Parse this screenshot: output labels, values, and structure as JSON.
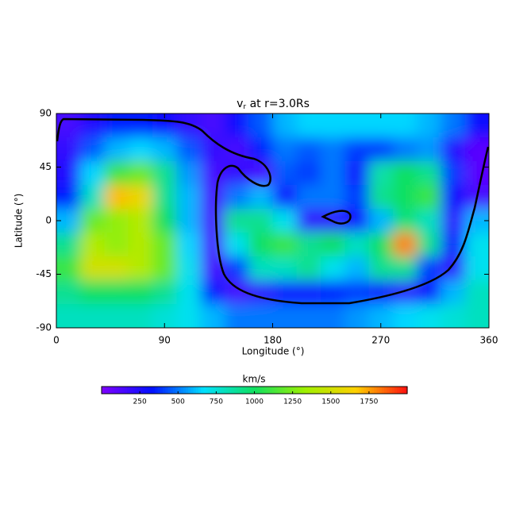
{
  "chart_data": {
    "type": "heatmap",
    "title": {
      "main": "v",
      "sub": "r",
      "rest": " at r=3.0Rs"
    },
    "x_label": "Longitude (°)",
    "y_label": "Latitude (°)",
    "xlim": [
      0,
      360
    ],
    "ylim": [
      -90,
      90
    ],
    "xticks": [
      0,
      90,
      180,
      270,
      360
    ],
    "yticks": [
      -90,
      -45,
      0,
      45,
      90
    ],
    "x": [
      10,
      30,
      50,
      70,
      90,
      110,
      130,
      150,
      170,
      190,
      210,
      230,
      250,
      270,
      290,
      310,
      330,
      350
    ],
    "y": [
      80,
      60,
      40,
      20,
      0,
      -20,
      -40,
      -60,
      -80
    ],
    "values": [
      [
        150,
        250,
        350,
        350,
        300,
        200,
        150,
        300,
        450,
        600,
        650,
        650,
        650,
        650,
        650,
        600,
        500,
        300
      ],
      [
        200,
        450,
        600,
        650,
        600,
        450,
        200,
        150,
        350,
        500,
        450,
        500,
        400,
        400,
        500,
        550,
        250,
        100
      ],
      [
        250,
        650,
        1100,
        1200,
        900,
        550,
        150,
        200,
        150,
        450,
        400,
        500,
        300,
        850,
        1000,
        900,
        400,
        100
      ],
      [
        350,
        800,
        1700,
        1600,
        900,
        600,
        150,
        500,
        600,
        300,
        500,
        500,
        400,
        900,
        1000,
        1100,
        300,
        150
      ],
      [
        600,
        1200,
        1300,
        1400,
        1000,
        600,
        150,
        900,
        900,
        700,
        200,
        200,
        300,
        600,
        950,
        800,
        200,
        600
      ],
      [
        900,
        1400,
        1300,
        1400,
        1200,
        650,
        150,
        700,
        1000,
        1100,
        900,
        1000,
        800,
        1000,
        1800,
        900,
        300,
        700
      ],
      [
        1100,
        1500,
        1500,
        1400,
        1200,
        700,
        150,
        400,
        800,
        800,
        900,
        700,
        600,
        900,
        900,
        400,
        200,
        700
      ],
      [
        900,
        1000,
        1000,
        1000,
        900,
        700,
        350,
        150,
        200,
        300,
        300,
        350,
        400,
        300,
        200,
        300,
        600,
        800
      ],
      [
        800,
        800,
        800,
        800,
        750,
        700,
        600,
        500,
        500,
        500,
        500,
        500,
        550,
        600,
        650,
        700,
        750,
        800
      ]
    ],
    "colorbar": {
      "label": "km/s",
      "clim": [
        0,
        2000
      ],
      "ticks": [
        250,
        500,
        750,
        1000,
        1250,
        1500,
        1750
      ],
      "colormap": [
        "#7f00ff",
        "#0010ff",
        "#00e0ff",
        "#10e060",
        "#a0f000",
        "#ffd000",
        "#ff1010"
      ]
    }
  }
}
